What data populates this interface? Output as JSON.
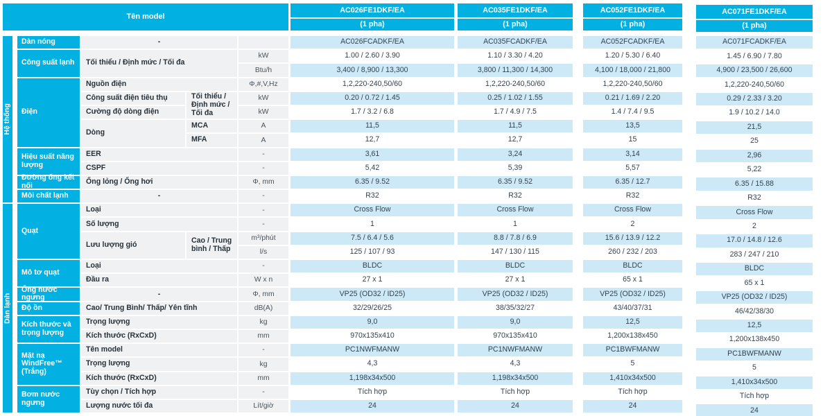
{
  "colors": {
    "accent_cyan": "#02b1e2",
    "row_light_blue": "#cde9f8",
    "label_gray": "#f0f1f2",
    "value_text": "#33424f"
  },
  "table": {
    "title": "Tên model",
    "models": [
      {
        "name": "AC026FE1DKF/EA",
        "phase": "(1 pha)"
      },
      {
        "name": "AC035FE1DKF/EA",
        "phase": "(1 pha)"
      },
      {
        "name": "AC052FE1DKF/EA",
        "phase": "(1 pha)"
      },
      {
        "name": "AC071FE1DKF/EA",
        "phase": "(1 pha)"
      }
    ],
    "side_sections": [
      {
        "label": "Hệ thống",
        "row": 1,
        "span": 12
      },
      {
        "label": "Dàn lạnh",
        "row": 13,
        "span": 15
      }
    ],
    "categories": [
      {
        "label": "Dàn nóng",
        "row": 1,
        "span": 1
      },
      {
        "label": "Công suất lạnh",
        "row": 2,
        "span": 2
      },
      {
        "label": "Điện",
        "row": 4,
        "span": 5
      },
      {
        "label": "Hiệu suất năng lượng",
        "row": 9,
        "span": 2
      },
      {
        "label": "Đường ống kết nối",
        "row": 11,
        "span": 1
      },
      {
        "label": "Môi chất lạnh",
        "row": 12,
        "span": 1
      },
      {
        "label": "Quạt",
        "row": 13,
        "span": 4
      },
      {
        "label": "Mô tơ quạt",
        "row": 17,
        "span": 2
      },
      {
        "label": "Ống nước ngưng",
        "row": 19,
        "span": 1
      },
      {
        "label": "Độ ồn",
        "row": 20,
        "span": 1
      },
      {
        "label": "Kích thước và trọng lượng",
        "row": 21,
        "span": 2
      },
      {
        "label": "Mặt nạ WindFree™ (Trắng)",
        "row": 23,
        "span": 3
      },
      {
        "label": "Bơm nước ngưng",
        "row": 26,
        "span": 2
      }
    ],
    "sub_cells": [
      {
        "row": 1,
        "span": 1,
        "col": "full",
        "text": "-",
        "center": true
      },
      {
        "row": 2,
        "span": 2,
        "col": "full",
        "text": "Tối thiểu / Định mức / Tối đa"
      },
      {
        "row": 4,
        "span": 1,
        "col": "full",
        "text": "Nguồn điện"
      },
      {
        "row": 5,
        "span": 1,
        "col": "s1",
        "text": "Công suất điện tiêu thụ"
      },
      {
        "row": 5,
        "span": 2,
        "col": "s2",
        "text": "Tối thiểu / Định mức / Tối đa"
      },
      {
        "row": 6,
        "span": 1,
        "col": "s1",
        "text": "Cường độ dòng điện"
      },
      {
        "row": 7,
        "span": 2,
        "col": "s1",
        "text": "Dòng"
      },
      {
        "row": 7,
        "span": 1,
        "col": "s2",
        "text": "MCA"
      },
      {
        "row": 8,
        "span": 1,
        "col": "s2",
        "text": "MFA"
      },
      {
        "row": 9,
        "span": 1,
        "col": "full",
        "text": "EER"
      },
      {
        "row": 10,
        "span": 1,
        "col": "full",
        "text": "CSPF"
      },
      {
        "row": 11,
        "span": 1,
        "col": "full",
        "text": "Ống lỏng / Ống hơi"
      },
      {
        "row": 12,
        "span": 1,
        "col": "full",
        "text": "-",
        "center": true
      },
      {
        "row": 13,
        "span": 1,
        "col": "full",
        "text": "Loại"
      },
      {
        "row": 14,
        "span": 1,
        "col": "full",
        "text": "Số lượng"
      },
      {
        "row": 15,
        "span": 2,
        "col": "s1",
        "text": "Lưu lượng gió"
      },
      {
        "row": 15,
        "span": 2,
        "col": "s2",
        "text": "Cao / Trung bình / Thấp"
      },
      {
        "row": 17,
        "span": 1,
        "col": "full",
        "text": "Loại"
      },
      {
        "row": 18,
        "span": 1,
        "col": "full",
        "text": "Đầu ra"
      },
      {
        "row": 19,
        "span": 1,
        "col": "full",
        "text": "-",
        "center": true
      },
      {
        "row": 20,
        "span": 1,
        "col": "full",
        "text": "Cao/ Trung Bình/ Thấp/ Yên tĩnh"
      },
      {
        "row": 21,
        "span": 1,
        "col": "full",
        "text": "Trọng lượng"
      },
      {
        "row": 22,
        "span": 1,
        "col": "full",
        "text": "Kích thước (RxCxD)"
      },
      {
        "row": 23,
        "span": 1,
        "col": "full",
        "text": "Tên model"
      },
      {
        "row": 24,
        "span": 1,
        "col": "full",
        "text": "Trọng lượng"
      },
      {
        "row": 25,
        "span": 1,
        "col": "full",
        "text": "Kích thước (RxCxD)"
      },
      {
        "row": 26,
        "span": 1,
        "col": "full",
        "text": "Tùy chọn / Tích hợp"
      },
      {
        "row": 27,
        "span": 1,
        "col": "full",
        "text": "Lượng nước tối đa"
      }
    ],
    "rows": [
      {
        "unit": "",
        "values": [
          "AC026FCADKF/EA",
          "AC035FCADKF/EA",
          "AC052FCADKF/EA",
          "AC071FCADKF/EA"
        ]
      },
      {
        "unit": "kW",
        "values": [
          "1.00 / 2.60 / 3.90",
          "1.10 / 3.30 / 4.20",
          "1.20 / 5.30 / 6.40",
          "1.45 / 6.90 / 7.80"
        ]
      },
      {
        "unit": "Btu/h",
        "values": [
          "3,400 / 8,900 / 13,300",
          "3,800 / 11,300 / 14,300",
          "4,100 / 18,000 / 21,800",
          "4,900 / 23,500 / 26,600"
        ]
      },
      {
        "unit": "Φ,#,V,Hz",
        "values": [
          "1,2,220-240,50/60",
          "1,2,220-240,50/60",
          "1,2,220-240,50/60",
          "1,2,220-240,50/60"
        ]
      },
      {
        "unit": "kW",
        "values": [
          "0.20 / 0.72 / 1.45",
          "0.25 / 1.02 / 1.55",
          "0.21 / 1.69 / 2.20",
          "0.29 / 2.33 / 3.20"
        ]
      },
      {
        "unit": "kW",
        "values": [
          "1.7 / 3.2 / 6.8",
          "1.7 / 4.9 / 7.5",
          "1.4 / 7.4 / 9.5",
          "1.9 / 10.2 / 14.0"
        ]
      },
      {
        "unit": "A",
        "values": [
          "11,5",
          "11,5",
          "13,5",
          "21,5"
        ]
      },
      {
        "unit": "A",
        "values": [
          "12,7",
          "12,7",
          "15",
          "25"
        ]
      },
      {
        "unit": "-",
        "values": [
          "3,61",
          "3,24",
          "3,14",
          "2,96"
        ]
      },
      {
        "unit": "-",
        "values": [
          "5,42",
          "5,39",
          "5,57",
          "5,22"
        ]
      },
      {
        "unit": "Φ, mm",
        "values": [
          "6.35 / 9.52",
          "6.35 / 9.52",
          "6.35 / 12.7",
          "6.35 / 15.88"
        ]
      },
      {
        "unit": "-",
        "values": [
          "R32",
          "R32",
          "R32",
          "R32"
        ]
      },
      {
        "unit": "-",
        "values": [
          "Cross Flow",
          "Cross Flow",
          "Cross Flow",
          "Cross Flow"
        ]
      },
      {
        "unit": "-",
        "values": [
          "1",
          "1",
          "2",
          "2"
        ]
      },
      {
        "unit": "m³/phút",
        "values": [
          "7.5 / 6.4 / 5.6",
          "8.8 / 7.8 / 6.9",
          "15.6 / 13.9 / 12.2",
          "17.0 / 14.8 / 12.6"
        ]
      },
      {
        "unit": "l/s",
        "values": [
          "125 / 107 / 93",
          "147 / 130 / 115",
          "260 / 232 / 203",
          "283 / 247 / 210"
        ]
      },
      {
        "unit": "-",
        "values": [
          "BLDC",
          "BLDC",
          "BLDC",
          "BLDC"
        ]
      },
      {
        "unit": "W x n",
        "values": [
          "27 x 1",
          "27 x 1",
          "65 x 1",
          "65 x 1"
        ]
      },
      {
        "unit": "Φ, mm",
        "values": [
          "VP25 (OD32 / ID25)",
          "VP25 (OD32 / ID25)",
          "VP25 (OD32 / ID25)",
          "VP25 (OD32 / ID25)"
        ]
      },
      {
        "unit": "dB(A)",
        "values": [
          "32/29/26/25",
          "38/35/32/27",
          "43/40/37/31",
          "46/42/38/30"
        ]
      },
      {
        "unit": "kg",
        "values": [
          "9,0",
          "9,0",
          "12,5",
          "12,5"
        ]
      },
      {
        "unit": "mm",
        "values": [
          "970x135x410",
          "970x135x410",
          "1,200x138x450",
          "1,200x138x450"
        ]
      },
      {
        "unit": "-",
        "values": [
          "PC1NWFMANW",
          "PC1NWFMANW",
          "PC1BWFMANW",
          "PC1BWFMANW"
        ]
      },
      {
        "unit": "kg",
        "values": [
          "4,3",
          "4,3",
          "5",
          "5"
        ]
      },
      {
        "unit": "mm",
        "values": [
          "1,198x34x500",
          "1,198x34x500",
          "1,410x34x500",
          "1,410x34x500"
        ]
      },
      {
        "unit": "-",
        "values": [
          "Tích hợp",
          "Tích hợp",
          "Tích hợp",
          "Tích hợp"
        ]
      },
      {
        "unit": "Lít/giờ",
        "values": [
          "24",
          "24",
          "24",
          "24"
        ]
      }
    ]
  }
}
